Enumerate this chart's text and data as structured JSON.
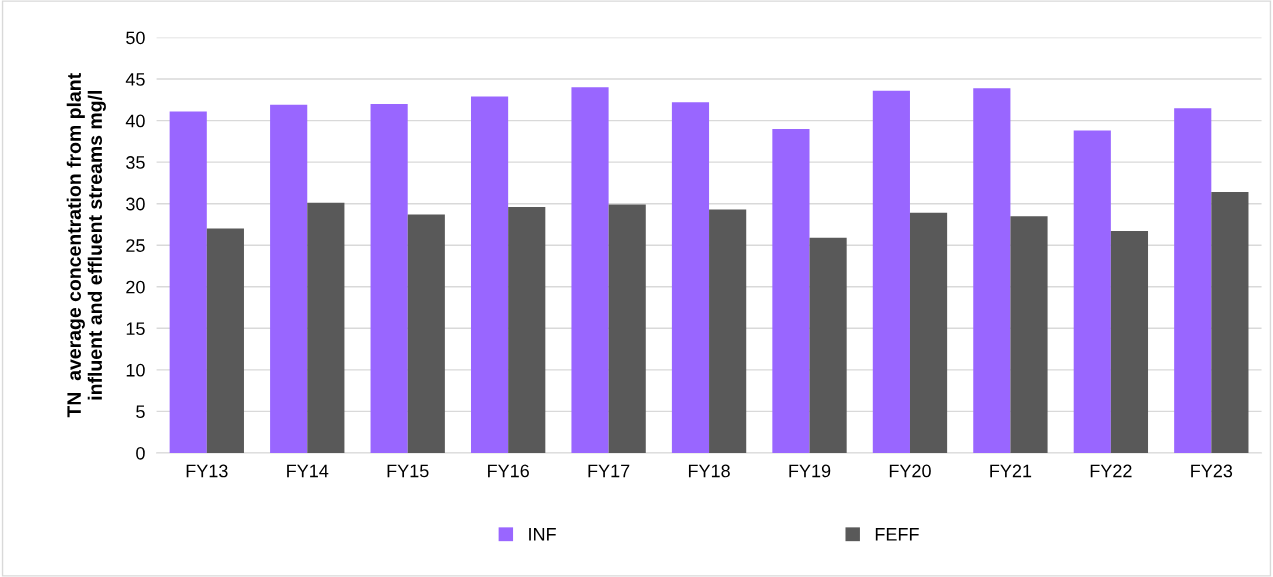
{
  "chart_data": {
    "type": "bar",
    "ylabel": "TN  average concentration from plant\ninfluent and effluent streams mg/l",
    "categories": [
      "FY13",
      "FY14",
      "FY15",
      "FY16",
      "FY17",
      "FY18",
      "FY19",
      "FY20",
      "FY21",
      "FY22",
      "FY23"
    ],
    "series": [
      {
        "name": "INF",
        "color": "#9966ff",
        "values": [
          41.1,
          41.9,
          42.0,
          42.9,
          44.0,
          42.2,
          39.0,
          43.6,
          43.9,
          38.8,
          41.5
        ]
      },
      {
        "name": "FEFF",
        "color": "#595959",
        "values": [
          27.0,
          30.1,
          28.7,
          29.6,
          29.9,
          29.3,
          25.9,
          28.9,
          28.5,
          26.7,
          31.4
        ]
      }
    ],
    "ylim": [
      0,
      50
    ],
    "yticks": [
      0,
      5,
      10,
      15,
      20,
      25,
      30,
      35,
      40,
      45,
      50
    ],
    "grid": "y",
    "legend": "bottom"
  }
}
